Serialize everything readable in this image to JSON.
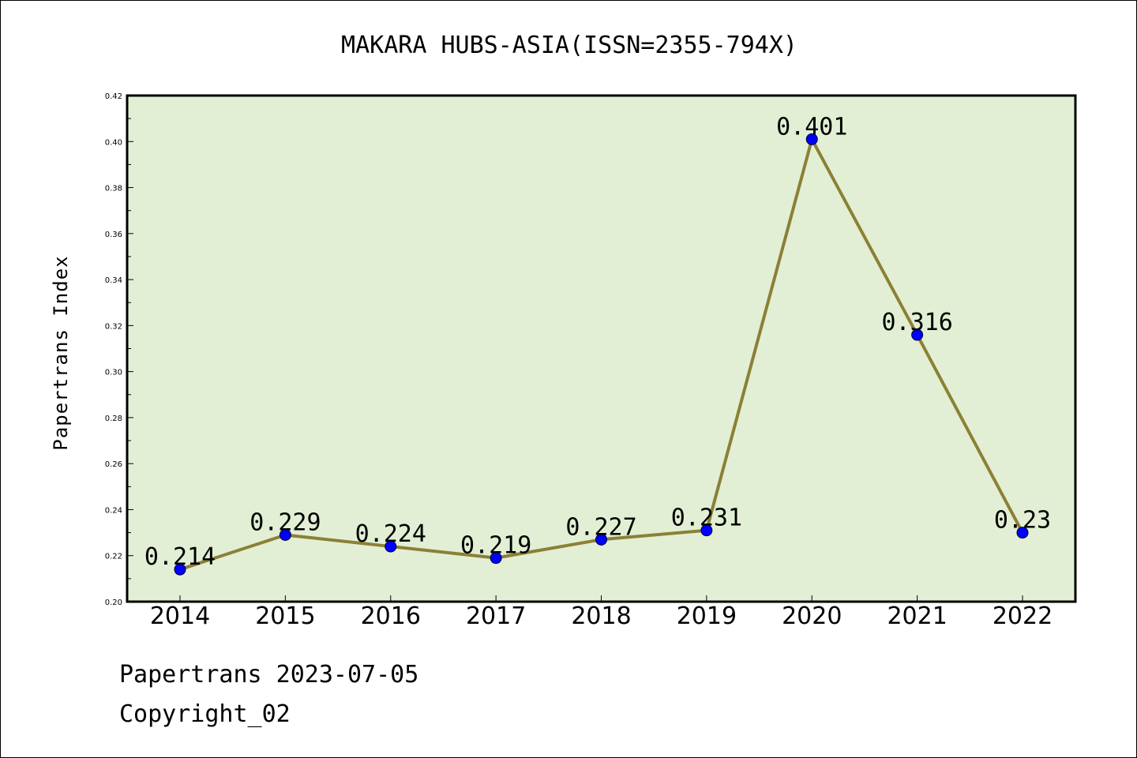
{
  "colors": {
    "plot_background": "#e2efd4",
    "line": "#8b8036",
    "marker": "#0000ff"
  },
  "footer": {
    "line1": "Papertrans 2023-07-05",
    "line2": "Copyright_02"
  },
  "chart_data": {
    "type": "line",
    "title": "MAKARA HUBS-ASIA(ISSN=2355-794X)",
    "xlabel": "",
    "ylabel": "Papertrans Index",
    "categories": [
      "2014",
      "2015",
      "2016",
      "2017",
      "2018",
      "2019",
      "2020",
      "2021",
      "2022"
    ],
    "series": [
      {
        "values": [
          0.214,
          0.229,
          0.224,
          0.219,
          0.227,
          0.231,
          0.401,
          0.316,
          0.23
        ],
        "labels": [
          "0.214",
          "0.229",
          "0.224",
          "0.219",
          "0.227",
          "0.231",
          "0.401",
          "0.316",
          "0.23"
        ]
      }
    ],
    "ylim": [
      0.2,
      0.42
    ],
    "yticks": [
      "0.20",
      "0.22",
      "0.24",
      "0.26",
      "0.28",
      "0.30",
      "0.32",
      "0.34",
      "0.36",
      "0.38",
      "0.40",
      "0.42"
    ],
    "grid": false,
    "legend": "none"
  }
}
